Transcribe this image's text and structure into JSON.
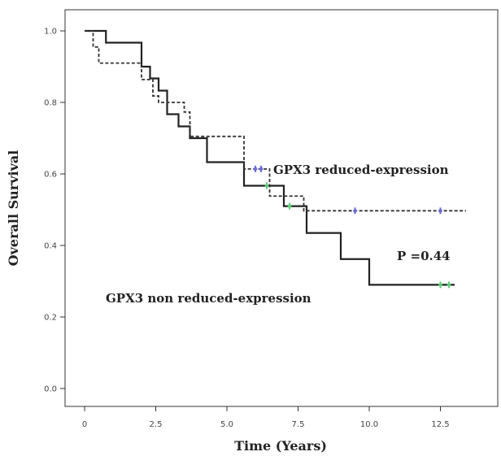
{
  "chart_data": {
    "type": "line",
    "title": "",
    "xlabel": "Time (Years)",
    "ylabel": "Overall Survival",
    "xlim": [
      -0.5,
      14
    ],
    "ylim": [
      -0.04,
      1.03
    ],
    "x_ticks": [
      "0",
      "2.5",
      "5.0",
      "7.5",
      "10.0",
      "12.5"
    ],
    "x_tick_values": [
      0,
      2.5,
      5.0,
      7.5,
      10.0,
      12.5
    ],
    "y_ticks": [
      "0.0",
      "0.2",
      "0.4",
      "0.6",
      "0.8",
      "1.0"
    ],
    "y_tick_values": [
      0.0,
      0.2,
      0.4,
      0.6,
      0.8,
      1.0
    ],
    "grid": false,
    "series": [
      {
        "name": "GPX3 non reduced-expression",
        "line_style": "solid",
        "color": "#222222",
        "censor_color": "#5ecf7a",
        "x": [
          0,
          0.75,
          2.0,
          2.3,
          2.6,
          2.9,
          3.3,
          3.7,
          4.3,
          5.6,
          6.5,
          7.0,
          7.8,
          9.0,
          10.0,
          13.0
        ],
        "y": [
          1.0,
          0.967,
          0.9,
          0.867,
          0.833,
          0.767,
          0.733,
          0.7,
          0.633,
          0.567,
          0.567,
          0.51,
          0.435,
          0.362,
          0.29,
          0.29
        ],
        "censored": [
          [
            6.4,
            0.567
          ],
          [
            7.2,
            0.51
          ],
          [
            12.5,
            0.29
          ],
          [
            12.8,
            0.29
          ]
        ]
      },
      {
        "name": "GPX3 reduced-expression",
        "line_style": "dashed",
        "color": "#333333",
        "censor_color": "#6b6bd6",
        "x": [
          0,
          0.3,
          0.5,
          2.0,
          2.4,
          2.6,
          3.0,
          3.5,
          3.7,
          5.6,
          6.0,
          6.5,
          7.7,
          13.4
        ],
        "y": [
          1.0,
          0.955,
          0.91,
          0.864,
          0.818,
          0.8,
          0.8,
          0.773,
          0.705,
          0.614,
          0.614,
          0.538,
          0.497,
          0.497
        ],
        "censored": [
          [
            6.0,
            0.614
          ],
          [
            6.2,
            0.614
          ],
          [
            9.5,
            0.497
          ],
          [
            12.5,
            0.497
          ]
        ]
      }
    ],
    "annotations": [
      {
        "text": "GPX3 reduced-expression",
        "x": 6.35,
        "y": 0.6
      },
      {
        "text": "P =0.44",
        "x": 10.9,
        "y": 0.38
      },
      {
        "text": "GPX3 non reduced-expression",
        "x": 1.5,
        "y": 0.28
      }
    ]
  }
}
